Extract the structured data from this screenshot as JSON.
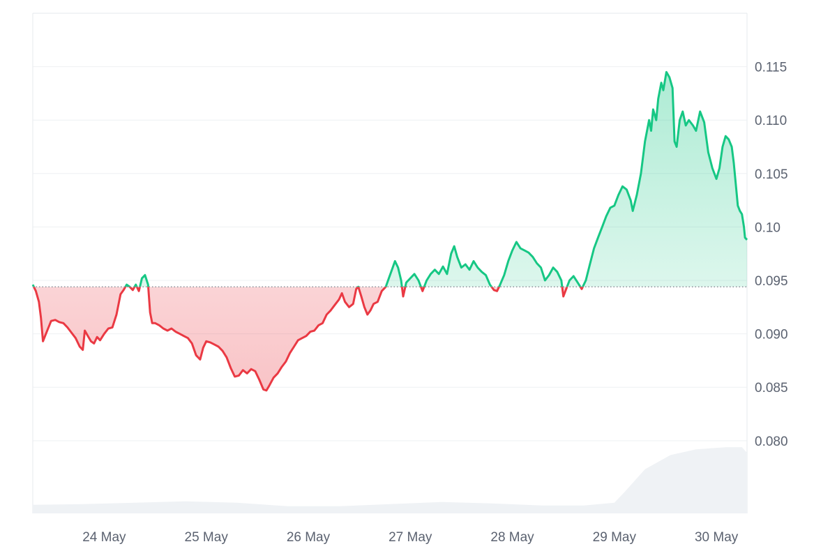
{
  "chart_data": {
    "type": "area",
    "title": "",
    "xlabel": "",
    "ylabel": "",
    "baseline": 0.0944,
    "colors": {
      "up": "#16c784",
      "down": "#ea3943",
      "volume": "#eff2f5"
    },
    "x_ticks": [
      "24 May",
      "25 May",
      "26 May",
      "27 May",
      "28 May",
      "29 May",
      "30 May"
    ],
    "y_ticks": [
      "0.080",
      "0.085",
      "0.090",
      "0.095",
      "0.10",
      "0.105",
      "0.110",
      "0.115"
    ],
    "ylim": [
      0.0732,
      0.12
    ],
    "x_range_days": [
      0,
      7.0
    ],
    "series": [
      {
        "points_day_price": [
          [
            0.0,
            0.0946
          ],
          [
            0.03,
            0.094
          ],
          [
            0.06,
            0.093
          ],
          [
            0.08,
            0.0915
          ],
          [
            0.1,
            0.0893
          ],
          [
            0.12,
            0.0898
          ],
          [
            0.15,
            0.0905
          ],
          [
            0.18,
            0.0912
          ],
          [
            0.22,
            0.0913
          ],
          [
            0.26,
            0.0911
          ],
          [
            0.3,
            0.091
          ],
          [
            0.34,
            0.0906
          ],
          [
            0.38,
            0.0901
          ],
          [
            0.42,
            0.0896
          ],
          [
            0.46,
            0.0888
          ],
          [
            0.49,
            0.0885
          ],
          [
            0.51,
            0.0903
          ],
          [
            0.54,
            0.0898
          ],
          [
            0.57,
            0.0893
          ],
          [
            0.6,
            0.0891
          ],
          [
            0.63,
            0.0897
          ],
          [
            0.66,
            0.0894
          ],
          [
            0.7,
            0.09
          ],
          [
            0.74,
            0.0905
          ],
          [
            0.78,
            0.0906
          ],
          [
            0.82,
            0.0918
          ],
          [
            0.86,
            0.0937
          ],
          [
            0.89,
            0.0941
          ],
          [
            0.92,
            0.0946
          ],
          [
            0.95,
            0.0944
          ],
          [
            0.98,
            0.0941
          ],
          [
            1.01,
            0.0946
          ],
          [
            1.04,
            0.094
          ],
          [
            1.07,
            0.0952
          ],
          [
            1.1,
            0.0955
          ],
          [
            1.13,
            0.0946
          ],
          [
            1.15,
            0.092
          ],
          [
            1.17,
            0.091
          ],
          [
            1.2,
            0.091
          ],
          [
            1.24,
            0.0908
          ],
          [
            1.28,
            0.0905
          ],
          [
            1.32,
            0.0903
          ],
          [
            1.36,
            0.0905
          ],
          [
            1.4,
            0.0902
          ],
          [
            1.44,
            0.09
          ],
          [
            1.48,
            0.0898
          ],
          [
            1.52,
            0.0896
          ],
          [
            1.56,
            0.0891
          ],
          [
            1.6,
            0.088
          ],
          [
            1.64,
            0.0876
          ],
          [
            1.67,
            0.0887
          ],
          [
            1.7,
            0.0893
          ],
          [
            1.74,
            0.0892
          ],
          [
            1.78,
            0.089
          ],
          [
            1.82,
            0.0888
          ],
          [
            1.86,
            0.0884
          ],
          [
            1.9,
            0.0878
          ],
          [
            1.94,
            0.0868
          ],
          [
            1.98,
            0.086
          ],
          [
            2.02,
            0.0861
          ],
          [
            2.06,
            0.0866
          ],
          [
            2.1,
            0.0863
          ],
          [
            2.14,
            0.0867
          ],
          [
            2.18,
            0.0865
          ],
          [
            2.22,
            0.0857
          ],
          [
            2.26,
            0.0848
          ],
          [
            2.29,
            0.0847
          ],
          [
            2.32,
            0.0852
          ],
          [
            2.36,
            0.0859
          ],
          [
            2.4,
            0.0863
          ],
          [
            2.44,
            0.0869
          ],
          [
            2.48,
            0.0874
          ],
          [
            2.52,
            0.0882
          ],
          [
            2.56,
            0.0888
          ],
          [
            2.6,
            0.0894
          ],
          [
            2.64,
            0.0896
          ],
          [
            2.68,
            0.0898
          ],
          [
            2.72,
            0.0902
          ],
          [
            2.76,
            0.0903
          ],
          [
            2.8,
            0.0908
          ],
          [
            2.84,
            0.091
          ],
          [
            2.88,
            0.0918
          ],
          [
            2.92,
            0.0922
          ],
          [
            2.96,
            0.0927
          ],
          [
            3.0,
            0.0932
          ],
          [
            3.03,
            0.0938
          ],
          [
            3.06,
            0.093
          ],
          [
            3.1,
            0.0925
          ],
          [
            3.14,
            0.0928
          ],
          [
            3.17,
            0.0942
          ],
          [
            3.19,
            0.0944
          ],
          [
            3.22,
            0.0935
          ],
          [
            3.25,
            0.0925
          ],
          [
            3.28,
            0.0918
          ],
          [
            3.31,
            0.0922
          ],
          [
            3.34,
            0.0928
          ],
          [
            3.38,
            0.093
          ],
          [
            3.42,
            0.094
          ],
          [
            3.46,
            0.0944
          ],
          [
            3.49,
            0.0952
          ],
          [
            3.52,
            0.096
          ],
          [
            3.55,
            0.0968
          ],
          [
            3.58,
            0.0962
          ],
          [
            3.61,
            0.095
          ],
          [
            3.63,
            0.0935
          ],
          [
            3.66,
            0.0948
          ],
          [
            3.7,
            0.0952
          ],
          [
            3.74,
            0.0956
          ],
          [
            3.78,
            0.095
          ],
          [
            3.82,
            0.094
          ],
          [
            3.86,
            0.095
          ],
          [
            3.9,
            0.0956
          ],
          [
            3.94,
            0.096
          ],
          [
            3.98,
            0.0956
          ],
          [
            4.02,
            0.0963
          ],
          [
            4.06,
            0.0956
          ],
          [
            4.1,
            0.0975
          ],
          [
            4.13,
            0.0982
          ],
          [
            4.16,
            0.0972
          ],
          [
            4.2,
            0.0962
          ],
          [
            4.24,
            0.0965
          ],
          [
            4.28,
            0.096
          ],
          [
            4.32,
            0.0968
          ],
          [
            4.36,
            0.0962
          ],
          [
            4.4,
            0.0958
          ],
          [
            4.44,
            0.0955
          ],
          [
            4.48,
            0.0946
          ],
          [
            4.52,
            0.0941
          ],
          [
            4.55,
            0.094
          ],
          [
            4.58,
            0.0946
          ],
          [
            4.62,
            0.0955
          ],
          [
            4.66,
            0.0968
          ],
          [
            4.7,
            0.0978
          ],
          [
            4.74,
            0.0986
          ],
          [
            4.78,
            0.098
          ],
          [
            4.82,
            0.0978
          ],
          [
            4.86,
            0.0976
          ],
          [
            4.9,
            0.0972
          ],
          [
            4.94,
            0.0966
          ],
          [
            4.98,
            0.0962
          ],
          [
            5.02,
            0.095
          ],
          [
            5.06,
            0.0955
          ],
          [
            5.1,
            0.0962
          ],
          [
            5.14,
            0.0958
          ],
          [
            5.18,
            0.095
          ],
          [
            5.2,
            0.0935
          ],
          [
            5.22,
            0.094
          ],
          [
            5.26,
            0.095
          ],
          [
            5.3,
            0.0954
          ],
          [
            5.34,
            0.0948
          ],
          [
            5.38,
            0.0942
          ],
          [
            5.42,
            0.095
          ],
          [
            5.46,
            0.0965
          ],
          [
            5.5,
            0.098
          ],
          [
            5.54,
            0.099
          ],
          [
            5.58,
            0.1
          ],
          [
            5.62,
            0.101
          ],
          [
            5.66,
            0.1018
          ],
          [
            5.7,
            0.102
          ],
          [
            5.74,
            0.103
          ],
          [
            5.78,
            0.1038
          ],
          [
            5.82,
            0.1035
          ],
          [
            5.86,
            0.1025
          ],
          [
            5.88,
            0.1015
          ],
          [
            5.92,
            0.103
          ],
          [
            5.96,
            0.105
          ],
          [
            6.0,
            0.108
          ],
          [
            6.04,
            0.11
          ],
          [
            6.06,
            0.109
          ],
          [
            6.08,
            0.111
          ],
          [
            6.11,
            0.11
          ],
          [
            6.13,
            0.112
          ],
          [
            6.16,
            0.1135
          ],
          [
            6.18,
            0.1128
          ],
          [
            6.21,
            0.1145
          ],
          [
            6.24,
            0.114
          ],
          [
            6.27,
            0.113
          ],
          [
            6.29,
            0.108
          ],
          [
            6.31,
            0.1075
          ],
          [
            6.34,
            0.11
          ],
          [
            6.37,
            0.1108
          ],
          [
            6.4,
            0.1095
          ],
          [
            6.43,
            0.11
          ],
          [
            6.47,
            0.1095
          ],
          [
            6.5,
            0.109
          ],
          [
            6.54,
            0.1108
          ],
          [
            6.58,
            0.1098
          ],
          [
            6.62,
            0.107
          ],
          [
            6.66,
            0.1055
          ],
          [
            6.7,
            0.1045
          ],
          [
            6.73,
            0.1055
          ],
          [
            6.76,
            0.1075
          ],
          [
            6.79,
            0.1085
          ],
          [
            6.82,
            0.1082
          ],
          [
            6.85,
            0.1075
          ],
          [
            6.87,
            0.106
          ],
          [
            6.89,
            0.104
          ],
          [
            6.91,
            0.102
          ],
          [
            6.93,
            0.1015
          ],
          [
            6.95,
            0.1012
          ],
          [
            6.97,
            0.1
          ],
          [
            6.98,
            0.099
          ],
          [
            7.0,
            0.0988
          ]
        ]
      }
    ],
    "volume_profile_day_fraction": [
      [
        0.0,
        0.12
      ],
      [
        0.5,
        0.13
      ],
      [
        1.0,
        0.15
      ],
      [
        1.5,
        0.17
      ],
      [
        2.0,
        0.15
      ],
      [
        2.5,
        0.1
      ],
      [
        3.0,
        0.1
      ],
      [
        3.5,
        0.13
      ],
      [
        4.0,
        0.16
      ],
      [
        4.5,
        0.14
      ],
      [
        5.0,
        0.11
      ],
      [
        5.4,
        0.11
      ],
      [
        5.7,
        0.15
      ],
      [
        5.8,
        0.3
      ],
      [
        6.0,
        0.62
      ],
      [
        6.25,
        0.82
      ],
      [
        6.5,
        0.9
      ],
      [
        6.8,
        0.93
      ],
      [
        6.95,
        0.93
      ],
      [
        7.0,
        0.85
      ]
    ]
  }
}
